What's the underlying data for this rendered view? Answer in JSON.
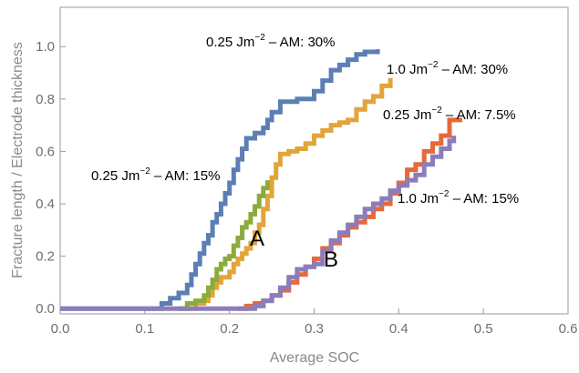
{
  "chart_data": {
    "type": "line",
    "xlabel": "Average SOC",
    "ylabel": "Fracture length / Electrode thickness",
    "xlim": [
      0.0,
      0.6
    ],
    "ylim": [
      -0.02,
      1.15
    ],
    "x_ticks": [
      "0.0",
      "0.1",
      "0.2",
      "0.3",
      "0.4",
      "0.5",
      "0.6"
    ],
    "y_ticks": [
      "0.0",
      "0.2",
      "0.4",
      "0.6",
      "0.8",
      "1.0"
    ],
    "grid": false,
    "line_style": "step",
    "series": [
      {
        "name": "0.25 Jm−2 – AM: 30%",
        "color": "#5b7fb5",
        "points": [
          [
            0.0,
            0.0
          ],
          [
            0.11,
            0.0
          ],
          [
            0.12,
            0.02
          ],
          [
            0.13,
            0.04
          ],
          [
            0.14,
            0.06
          ],
          [
            0.15,
            0.09
          ],
          [
            0.155,
            0.13
          ],
          [
            0.16,
            0.17
          ],
          [
            0.165,
            0.21
          ],
          [
            0.17,
            0.25
          ],
          [
            0.175,
            0.28
          ],
          [
            0.18,
            0.33
          ],
          [
            0.185,
            0.36
          ],
          [
            0.19,
            0.4
          ],
          [
            0.195,
            0.44
          ],
          [
            0.2,
            0.48
          ],
          [
            0.205,
            0.53
          ],
          [
            0.21,
            0.57
          ],
          [
            0.215,
            0.61
          ],
          [
            0.22,
            0.65
          ],
          [
            0.23,
            0.67
          ],
          [
            0.24,
            0.69
          ],
          [
            0.245,
            0.72
          ],
          [
            0.25,
            0.75
          ],
          [
            0.26,
            0.79
          ],
          [
            0.28,
            0.8
          ],
          [
            0.3,
            0.83
          ],
          [
            0.31,
            0.87
          ],
          [
            0.32,
            0.91
          ],
          [
            0.33,
            0.93
          ],
          [
            0.34,
            0.95
          ],
          [
            0.35,
            0.97
          ],
          [
            0.36,
            0.98
          ],
          [
            0.375,
            0.99
          ]
        ]
      },
      {
        "name": "1.0 Jm−2 – AM: 30%",
        "color": "#e2a53a",
        "points": [
          [
            0.14,
            0.0
          ],
          [
            0.16,
            0.02
          ],
          [
            0.17,
            0.03
          ],
          [
            0.175,
            0.05
          ],
          [
            0.18,
            0.08
          ],
          [
            0.185,
            0.1
          ],
          [
            0.19,
            0.12
          ],
          [
            0.2,
            0.14
          ],
          [
            0.205,
            0.17
          ],
          [
            0.21,
            0.19
          ],
          [
            0.215,
            0.21
          ],
          [
            0.22,
            0.23
          ],
          [
            0.225,
            0.25
          ],
          [
            0.23,
            0.29
          ],
          [
            0.235,
            0.32
          ],
          [
            0.24,
            0.38
          ],
          [
            0.245,
            0.43
          ],
          [
            0.25,
            0.5
          ],
          [
            0.255,
            0.55
          ],
          [
            0.26,
            0.59
          ],
          [
            0.27,
            0.6
          ],
          [
            0.28,
            0.61
          ],
          [
            0.29,
            0.63
          ],
          [
            0.3,
            0.66
          ],
          [
            0.31,
            0.68
          ],
          [
            0.32,
            0.7
          ],
          [
            0.33,
            0.71
          ],
          [
            0.34,
            0.72
          ],
          [
            0.35,
            0.76
          ],
          [
            0.36,
            0.79
          ],
          [
            0.37,
            0.81
          ],
          [
            0.38,
            0.85
          ],
          [
            0.39,
            0.88
          ]
        ]
      },
      {
        "name": "0.25 Jm−2 – AM: 15%",
        "color": "#8cab3c",
        "points": [
          [
            0.14,
            0.0
          ],
          [
            0.15,
            0.02
          ],
          [
            0.16,
            0.03
          ],
          [
            0.17,
            0.05
          ],
          [
            0.175,
            0.08
          ],
          [
            0.18,
            0.11
          ],
          [
            0.185,
            0.15
          ],
          [
            0.19,
            0.17
          ],
          [
            0.195,
            0.19
          ],
          [
            0.2,
            0.2
          ],
          [
            0.205,
            0.24
          ],
          [
            0.21,
            0.27
          ],
          [
            0.215,
            0.31
          ],
          [
            0.22,
            0.33
          ],
          [
            0.225,
            0.36
          ],
          [
            0.23,
            0.39
          ],
          [
            0.235,
            0.43
          ],
          [
            0.24,
            0.46
          ],
          [
            0.245,
            0.49
          ]
        ]
      },
      {
        "name": "0.25 Jm−2 – AM: 7.5%",
        "color": "#e8683a",
        "points": [
          [
            0.21,
            0.0
          ],
          [
            0.22,
            0.01
          ],
          [
            0.23,
            0.02
          ],
          [
            0.24,
            0.03
          ],
          [
            0.25,
            0.05
          ],
          [
            0.26,
            0.07
          ],
          [
            0.27,
            0.1
          ],
          [
            0.28,
            0.13
          ],
          [
            0.29,
            0.16
          ],
          [
            0.3,
            0.19
          ],
          [
            0.31,
            0.23
          ],
          [
            0.32,
            0.25
          ],
          [
            0.33,
            0.28
          ],
          [
            0.34,
            0.31
          ],
          [
            0.35,
            0.33
          ],
          [
            0.36,
            0.35
          ],
          [
            0.37,
            0.38
          ],
          [
            0.38,
            0.4
          ],
          [
            0.39,
            0.44
          ],
          [
            0.4,
            0.48
          ],
          [
            0.41,
            0.53
          ],
          [
            0.42,
            0.55
          ],
          [
            0.43,
            0.6
          ],
          [
            0.44,
            0.63
          ],
          [
            0.45,
            0.66
          ],
          [
            0.46,
            0.72
          ],
          [
            0.475,
            0.72
          ]
        ]
      },
      {
        "name": "1.0 Jm−2 – AM: 15%",
        "color": "#8d7cba",
        "points": [
          [
            0.0,
            0.0
          ],
          [
            0.21,
            0.0
          ],
          [
            0.23,
            0.01
          ],
          [
            0.24,
            0.03
          ],
          [
            0.25,
            0.05
          ],
          [
            0.26,
            0.08
          ],
          [
            0.27,
            0.12
          ],
          [
            0.28,
            0.15
          ],
          [
            0.29,
            0.16
          ],
          [
            0.3,
            0.17
          ],
          [
            0.31,
            0.22
          ],
          [
            0.32,
            0.26
          ],
          [
            0.33,
            0.29
          ],
          [
            0.34,
            0.32
          ],
          [
            0.35,
            0.35
          ],
          [
            0.36,
            0.38
          ],
          [
            0.37,
            0.4
          ],
          [
            0.38,
            0.42
          ],
          [
            0.39,
            0.45
          ],
          [
            0.4,
            0.47
          ],
          [
            0.41,
            0.49
          ],
          [
            0.42,
            0.51
          ],
          [
            0.43,
            0.55
          ],
          [
            0.44,
            0.58
          ],
          [
            0.45,
            0.61
          ],
          [
            0.46,
            0.64
          ],
          [
            0.465,
            0.66
          ]
        ]
      }
    ],
    "annotations": [
      {
        "base": "0.25 Jm",
        "sup": "−2",
        "rest": " – AM: 30%"
      },
      {
        "base": "1.0 Jm",
        "sup": "−2",
        "rest": " – AM: 30%"
      },
      {
        "base": "0.25 Jm",
        "sup": "−2",
        "rest": " – AM: 7.5%"
      },
      {
        "base": "0.25 Jm",
        "sup": "−2",
        "rest": " – AM: 15%"
      },
      {
        "base": "1.0 Jm",
        "sup": "−2",
        "rest": " – AM: 15%"
      }
    ],
    "markers": {
      "A": "A",
      "B": "B"
    }
  }
}
